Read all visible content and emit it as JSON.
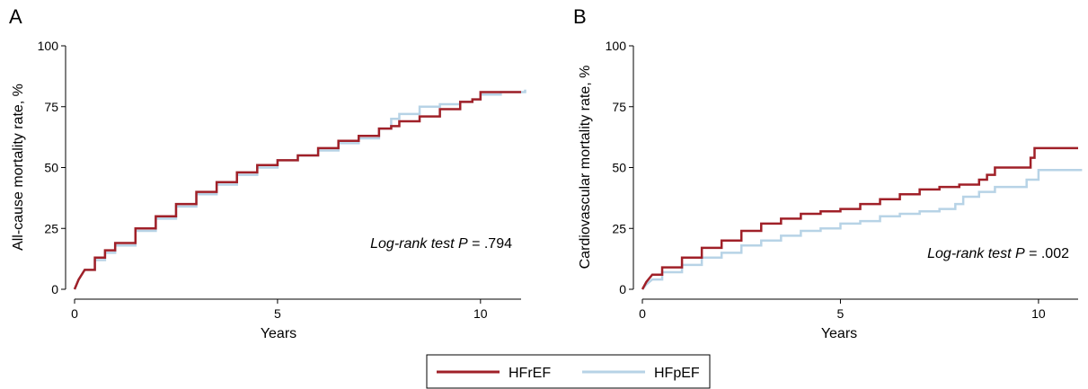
{
  "colors": {
    "HFrEF": "#A02028",
    "HFpEF": "#B7D3E6"
  },
  "legend": {
    "items": [
      "HFrEF",
      "HFpEF"
    ]
  },
  "chart_data": [
    {
      "panel": "A",
      "type": "line",
      "step": true,
      "xlabel": "Years",
      "ylabel": "All-cause mortality rate, %",
      "xlim": [
        0,
        11
      ],
      "ylim": [
        0,
        100
      ],
      "xticks": [
        0,
        5,
        10
      ],
      "yticks": [
        0,
        25,
        50,
        75,
        100
      ],
      "annotation": {
        "prefix": "Log-rank test ",
        "p": "P",
        "value": " = .794"
      },
      "series": [
        {
          "name": "HFrEF",
          "color": "#A02028",
          "x": [
            0,
            0.1,
            0.25,
            0.5,
            0.75,
            1,
            1.5,
            2,
            2.5,
            3,
            3.5,
            4,
            4.5,
            5,
            5.5,
            6,
            6.5,
            7,
            7.5,
            7.8,
            8,
            8.5,
            9,
            9.5,
            9.8,
            10,
            10.5,
            11
          ],
          "y": [
            0,
            4,
            8,
            13,
            16,
            19,
            25,
            30,
            35,
            40,
            44,
            48,
            51,
            53,
            55,
            58,
            61,
            63,
            66,
            67,
            69,
            71,
            74,
            77,
            78,
            81,
            81,
            81
          ]
        },
        {
          "name": "HFpEF",
          "color": "#B7D3E6",
          "x": [
            0,
            0.1,
            0.25,
            0.5,
            0.75,
            1,
            1.5,
            2,
            2.5,
            3,
            3.5,
            4,
            4.5,
            5,
            5.5,
            6,
            6.5,
            7,
            7.5,
            7.8,
            8,
            8.5,
            9,
            9.5,
            9.8,
            10,
            10.5,
            11.1
          ],
          "y": [
            0,
            4,
            8,
            12,
            15,
            18,
            24,
            29,
            34,
            39,
            43,
            47,
            50,
            53,
            55,
            57,
            60,
            62,
            66,
            70,
            72,
            75,
            76,
            77,
            78,
            80,
            81,
            82
          ]
        }
      ]
    },
    {
      "panel": "B",
      "type": "line",
      "step": true,
      "xlabel": "Years",
      "ylabel": "Cardiovascular mortality rate, %",
      "xlim": [
        0,
        11
      ],
      "ylim": [
        0,
        100
      ],
      "xticks": [
        0,
        5,
        10
      ],
      "yticks": [
        0,
        25,
        50,
        75,
        100
      ],
      "annotation": {
        "prefix": "Log-rank test ",
        "p": "P",
        "value": " = .002"
      },
      "series": [
        {
          "name": "HFrEF",
          "color": "#A02028",
          "x": [
            0,
            0.1,
            0.25,
            0.5,
            1,
            1.5,
            2,
            2.5,
            3,
            3.5,
            4,
            4.5,
            5,
            5.5,
            6,
            6.5,
            7,
            7.5,
            8,
            8.5,
            8.7,
            8.9,
            9.5,
            9.8,
            9.9,
            10.5,
            11
          ],
          "y": [
            0,
            3,
            6,
            9,
            13,
            17,
            20,
            24,
            27,
            29,
            31,
            32,
            33,
            35,
            37,
            39,
            41,
            42,
            43,
            45,
            47,
            50,
            50,
            54,
            58,
            58,
            58
          ]
        },
        {
          "name": "HFpEF",
          "color": "#B7D3E6",
          "x": [
            0,
            0.1,
            0.25,
            0.5,
            1,
            1.5,
            2,
            2.5,
            3,
            3.5,
            4,
            4.5,
            5,
            5.5,
            6,
            6.5,
            7,
            7.5,
            7.9,
            8.1,
            8.5,
            8.9,
            9.3,
            9.7,
            10,
            10.5,
            11.1
          ],
          "y": [
            0,
            2,
            4,
            7,
            10,
            13,
            15,
            18,
            20,
            22,
            24,
            25,
            27,
            28,
            30,
            31,
            32,
            33,
            35,
            38,
            40,
            42,
            42,
            45,
            49,
            49,
            49
          ]
        }
      ]
    }
  ]
}
